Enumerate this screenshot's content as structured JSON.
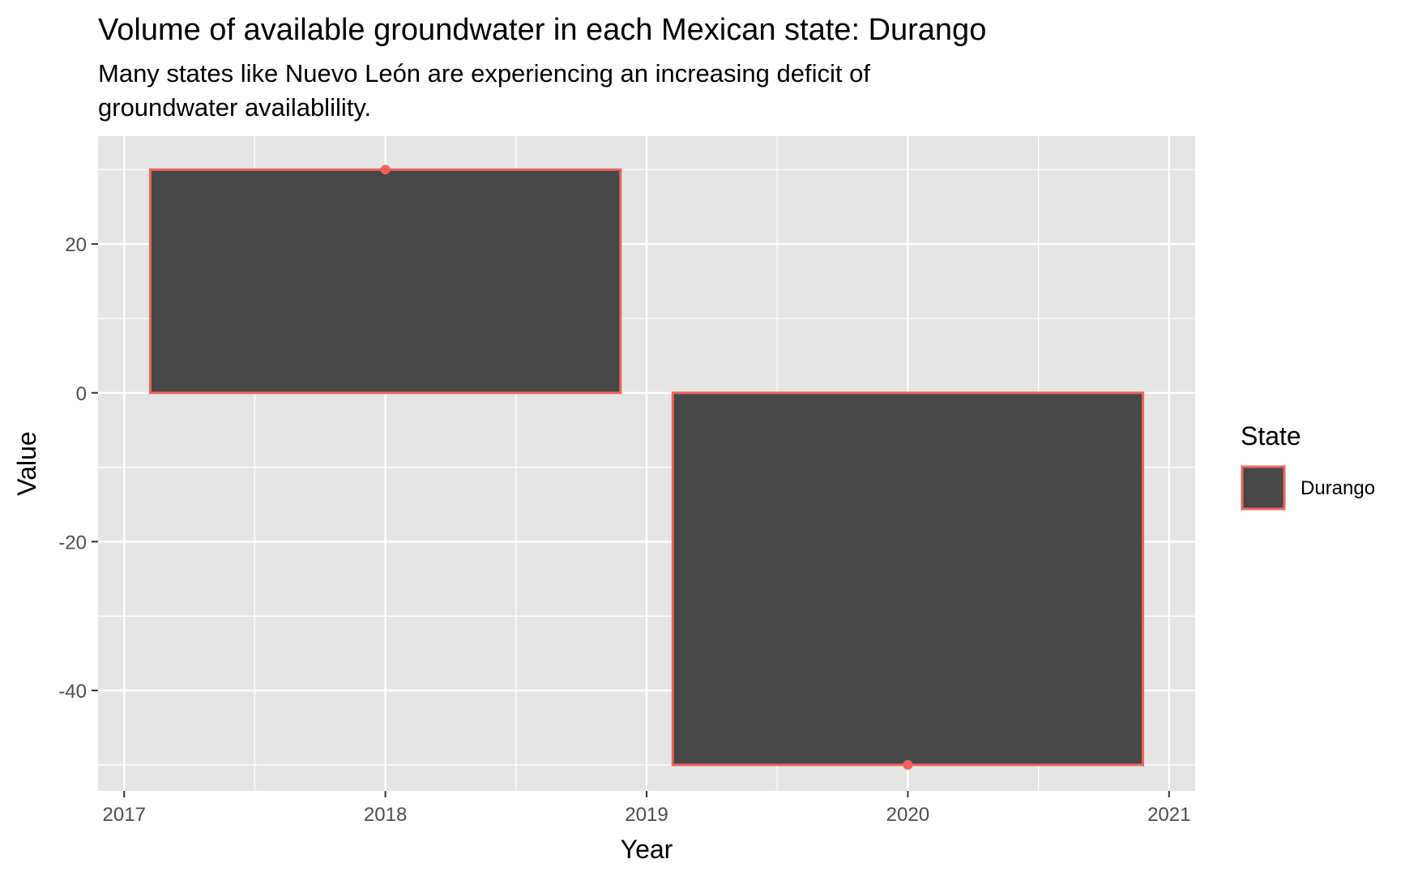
{
  "chart_data": {
    "type": "bar",
    "title": "Volume of available groundwater in each Mexican state: Durango",
    "subtitle_lines": [
      "Many states like Nuevo León are experiencing an increasing deficit of",
      "groundwater availablility."
    ],
    "xlabel": "Year",
    "ylabel": "Value",
    "x": [
      2018,
      2020
    ],
    "series": [
      {
        "name": "Durango",
        "values": [
          30,
          -50
        ]
      }
    ],
    "xlim": [
      2016.9,
      2021.1
    ],
    "ylim": [
      -53.5,
      34.5
    ],
    "x_ticks": [
      2017,
      2018,
      2019,
      2020,
      2021
    ],
    "x_tick_labels": [
      "2017",
      "2018",
      "2019",
      "2020",
      "2021"
    ],
    "y_ticks": [
      20,
      0,
      -20,
      -40
    ],
    "y_tick_labels": [
      "20",
      "0",
      "-20",
      "-40"
    ],
    "bar_width_years": 1.8,
    "grid": true,
    "legend": {
      "title": "State",
      "position": "right",
      "entries": [
        "Durango"
      ]
    },
    "colors": {
      "panel_background": "#e5e5e5",
      "grid_line": "#ffffff",
      "bar_fill": "#474747",
      "bar_outline": "#f0635c",
      "point": "#f0635c"
    }
  }
}
